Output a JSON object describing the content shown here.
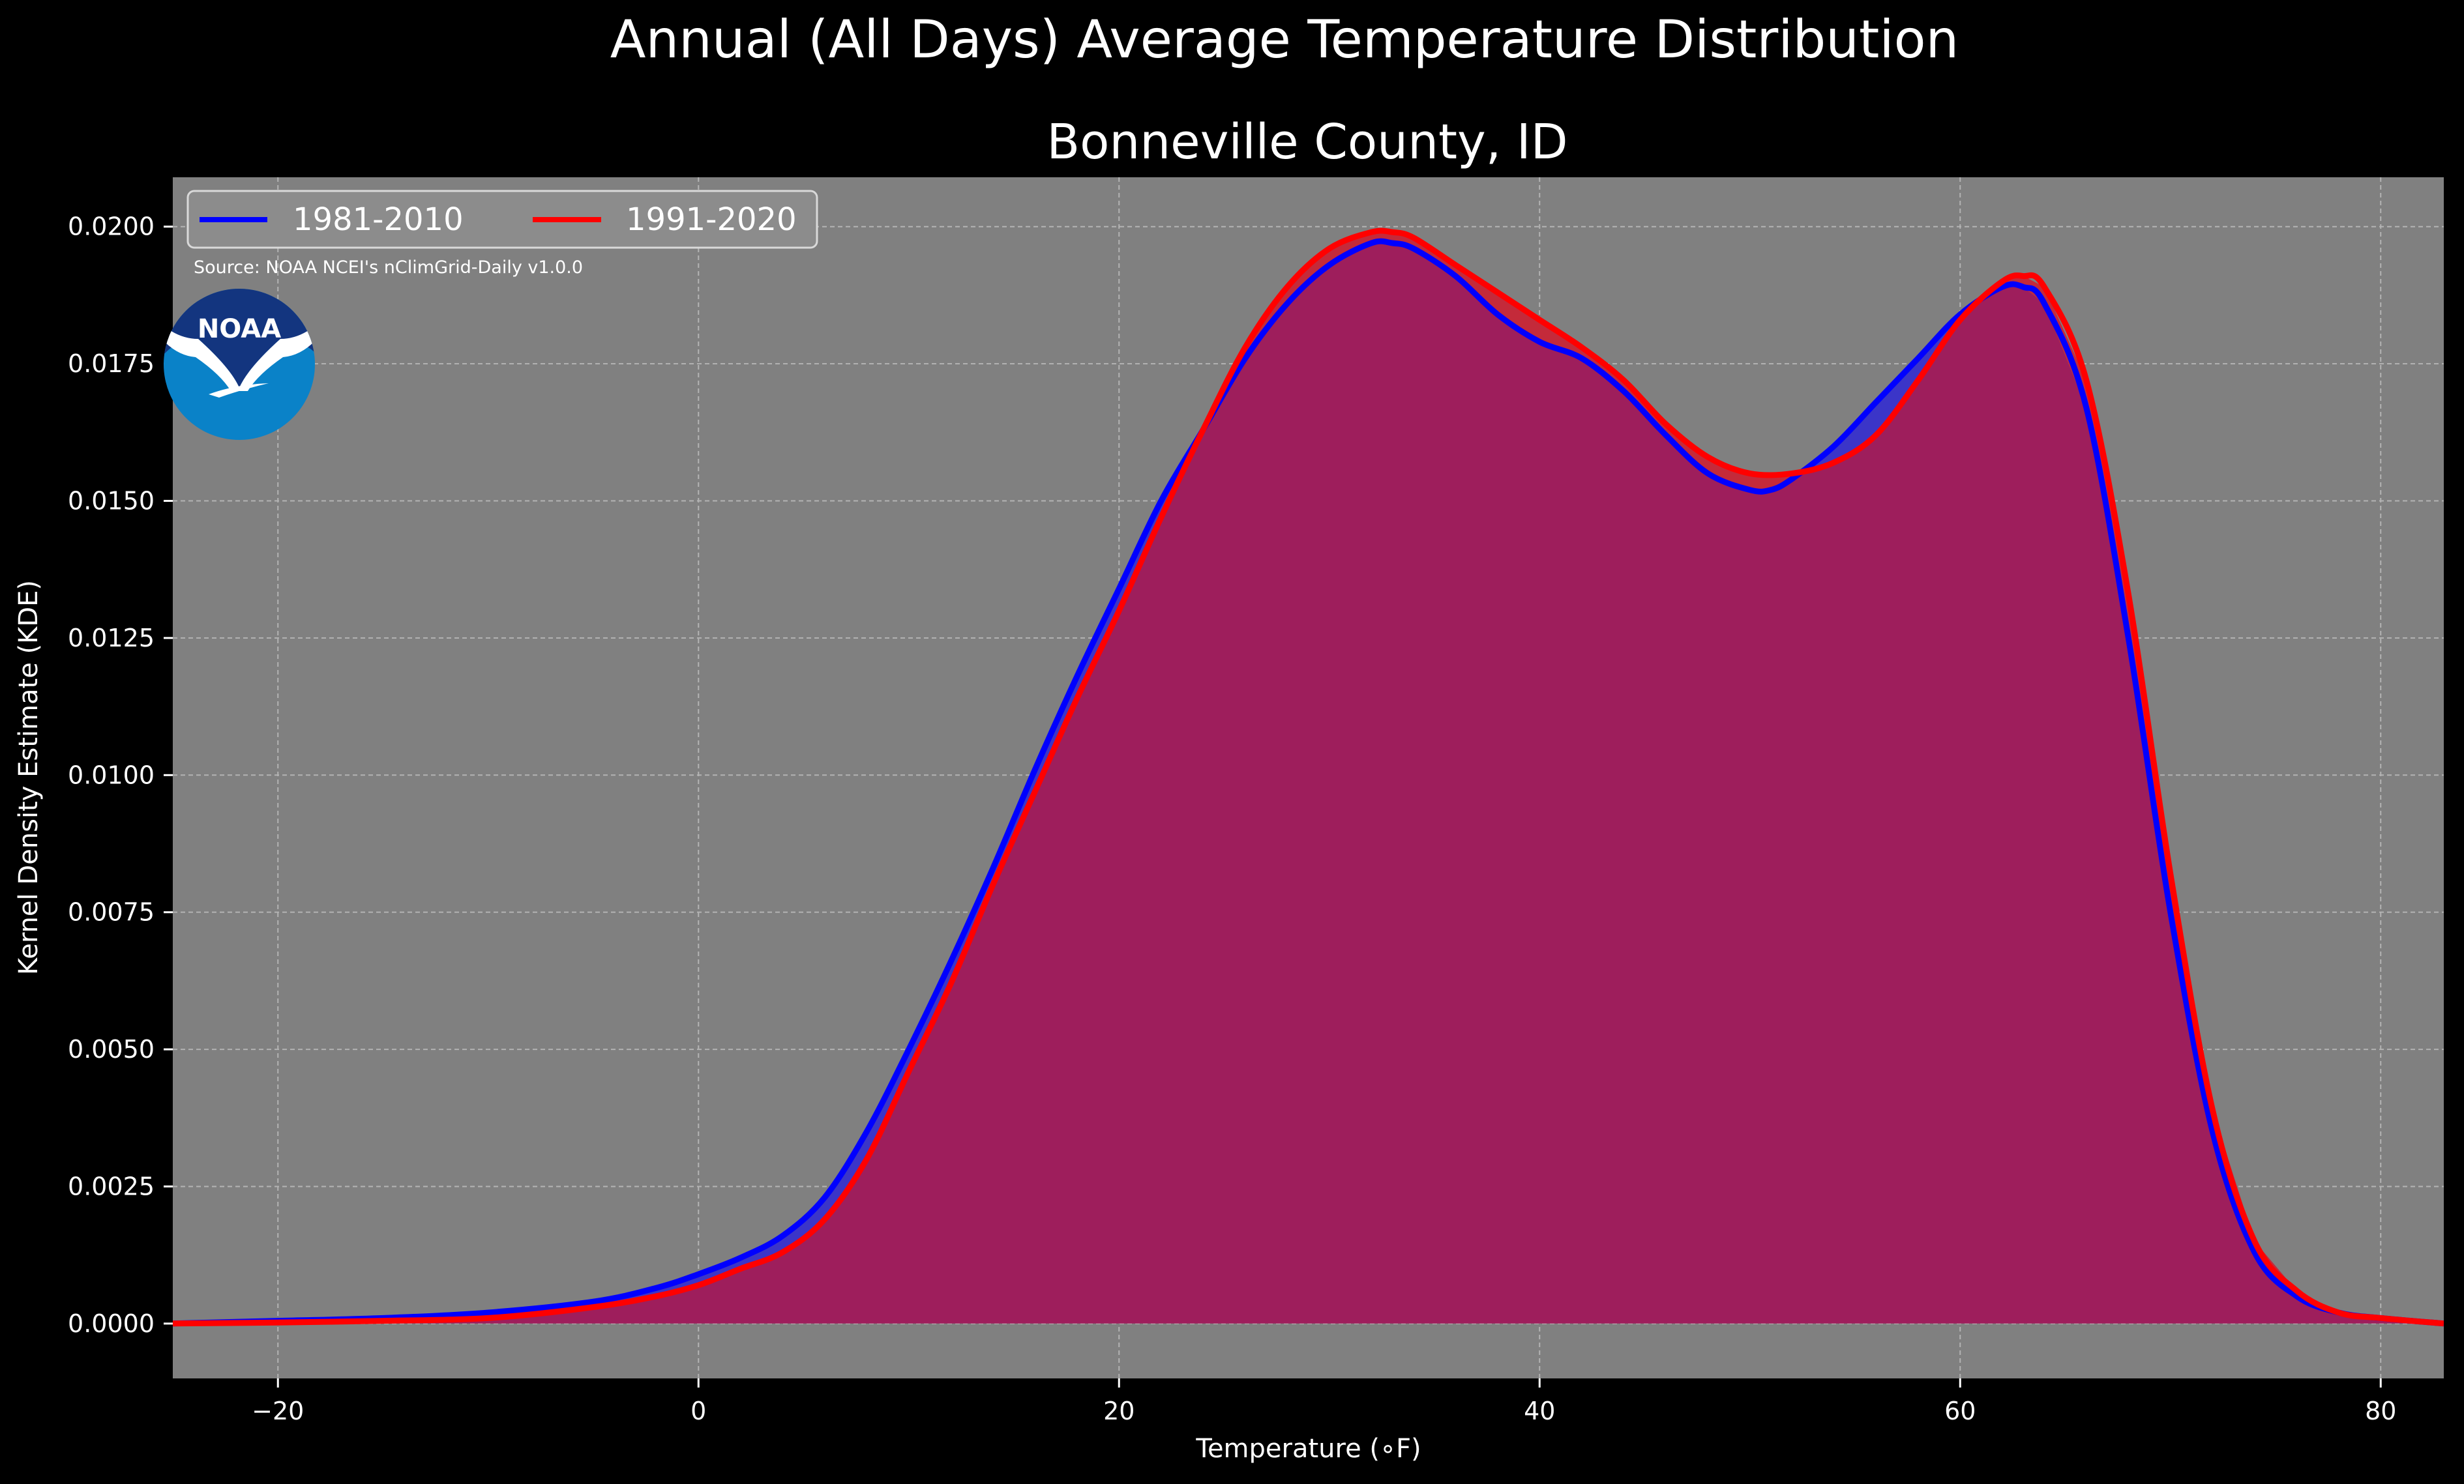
{
  "figure": {
    "suptitle": "Annual (All Days) Average Temperature Distribution",
    "source_note": "Source: NOAA NCEI's nClimGrid-Daily v1.0.0",
    "logo_text": "NOAA"
  },
  "colors": {
    "background": "#000000",
    "axes_face": "#808080",
    "series_1981": "#0000ff",
    "series_1991": "#ff0000",
    "overlap_fill": "#9e1e5c",
    "logo_blue": "#0a82c8",
    "logo_navy": "#13357f"
  },
  "chart_data": {
    "type": "area",
    "title": "Bonneville County, ID",
    "xlabel": "Temperature ($^\\circ$F)",
    "xlabel_display": "Temperature (∘F)",
    "ylabel": "Kernel Density Estimate (KDE)",
    "xlim": [
      -25,
      83
    ],
    "ylim": [
      -0.001,
      0.0209
    ],
    "x_ticks": [
      -20,
      0,
      20,
      40,
      60,
      80
    ],
    "x_tick_labels": [
      "−20",
      "0",
      "20",
      "40",
      "60",
      "80"
    ],
    "y_ticks": [
      0.0,
      0.0025,
      0.005,
      0.0075,
      0.01,
      0.0125,
      0.015,
      0.0175,
      0.02
    ],
    "y_tick_labels": [
      "0.0000",
      "0.0025",
      "0.0050",
      "0.0075",
      "0.0100",
      "0.0125",
      "0.0150",
      "0.0175",
      "0.0200"
    ],
    "grid": true,
    "legend_placement": "upper-left",
    "series": [
      {
        "name": "1981-2010",
        "x": [
          -25,
          -20,
          -15,
          -10,
          -5,
          -2,
          0,
          2,
          4,
          6,
          8,
          10,
          12,
          14,
          16,
          18,
          20,
          22,
          24,
          26,
          28,
          30,
          32,
          33,
          34,
          36,
          38,
          40,
          42,
          44,
          46,
          48,
          50,
          51,
          52,
          54,
          56,
          58,
          60,
          62,
          63,
          64,
          66,
          68,
          70,
          72,
          74,
          76,
          78,
          80,
          83
        ],
        "y": [
          0.0,
          5e-05,
          0.0001,
          0.0002,
          0.0004,
          0.00065,
          0.0009,
          0.0012,
          0.0016,
          0.0023,
          0.0035,
          0.005,
          0.0066,
          0.0083,
          0.0101,
          0.0118,
          0.0134,
          0.015,
          0.0163,
          0.0176,
          0.0186,
          0.0193,
          0.0197,
          0.0197,
          0.0196,
          0.0191,
          0.0184,
          0.0179,
          0.0176,
          0.017,
          0.0162,
          0.0155,
          0.0152,
          0.0152,
          0.0154,
          0.016,
          0.0168,
          0.0176,
          0.0184,
          0.0189,
          0.0189,
          0.0186,
          0.0167,
          0.0125,
          0.0075,
          0.0035,
          0.0013,
          0.0005,
          0.0002,
          0.0001,
          0.0
        ]
      },
      {
        "name": "1991-2020",
        "x": [
          -25,
          -20,
          -15,
          -10,
          -5,
          -2,
          0,
          2,
          4,
          6,
          8,
          10,
          12,
          14,
          16,
          18,
          20,
          22,
          24,
          26,
          28,
          30,
          32,
          33,
          34,
          36,
          38,
          40,
          42,
          44,
          46,
          48,
          50,
          52,
          54,
          56,
          58,
          60,
          62,
          63,
          64,
          66,
          68,
          70,
          72,
          74,
          76,
          78,
          80,
          83
        ],
        "y": [
          0.0,
          2e-05,
          5e-05,
          0.0001,
          0.0003,
          0.0005,
          0.0007,
          0.001,
          0.0013,
          0.0019,
          0.003,
          0.0046,
          0.0062,
          0.008,
          0.0097,
          0.0114,
          0.013,
          0.0147,
          0.0163,
          0.0178,
          0.0189,
          0.0196,
          0.0199,
          0.0199,
          0.0198,
          0.0193,
          0.0188,
          0.0183,
          0.0178,
          0.0172,
          0.0164,
          0.0158,
          0.0155,
          0.0155,
          0.0157,
          0.0162,
          0.0172,
          0.0183,
          0.019,
          0.0191,
          0.0189,
          0.0172,
          0.0133,
          0.0082,
          0.0039,
          0.0015,
          0.0006,
          0.0002,
          0.0001,
          0.0
        ]
      }
    ]
  }
}
